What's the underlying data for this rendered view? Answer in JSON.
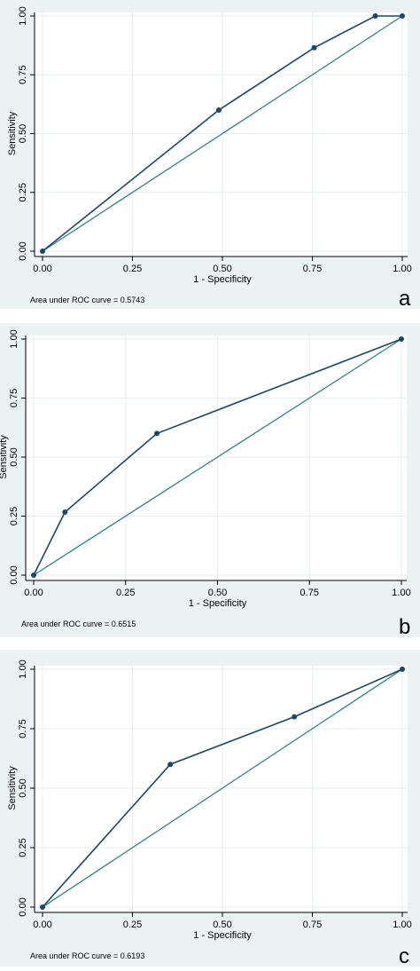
{
  "chart_data": [
    {
      "type": "line",
      "panel_label": "a",
      "xlabel": "1 - Specificity",
      "ylabel": "Sensitivity",
      "xlim": [
        0,
        1
      ],
      "ylim": [
        0,
        1
      ],
      "xticks": [
        "0.00",
        "0.25",
        "0.50",
        "0.75",
        "1.00"
      ],
      "yticks": [
        "0.00",
        "0.25",
        "0.50",
        "0.75",
        "1.00"
      ],
      "grid": true,
      "annotation": "Area under ROC curve = 0.5743",
      "series": [
        {
          "x": [
            0,
            0.49,
            0.755,
            0.925,
            1.0
          ],
          "y": [
            0,
            0.6,
            0.865,
            1.0,
            1.0
          ]
        },
        {
          "x": [
            0,
            1
          ],
          "y": [
            0,
            1
          ]
        }
      ]
    },
    {
      "type": "line",
      "panel_label": "b",
      "xlabel": "1 - Specificity",
      "ylabel": "Sensitivity",
      "xlim": [
        0,
        1
      ],
      "ylim": [
        0,
        1
      ],
      "xticks": [
        "0.00",
        "0.25",
        "0.50",
        "0.75",
        "1.00"
      ],
      "yticks": [
        "0.00",
        "0.25",
        "0.50",
        "0.75",
        "1.00"
      ],
      "grid": true,
      "annotation": "Area under ROC curve = 0.6515",
      "series": [
        {
          "x": [
            0,
            0.085,
            0.335,
            1.0
          ],
          "y": [
            0,
            0.267,
            0.6,
            1.0
          ]
        },
        {
          "x": [
            0,
            1
          ],
          "y": [
            0,
            1
          ]
        }
      ]
    },
    {
      "type": "line",
      "panel_label": "c",
      "xlabel": "1 - Specificity",
      "ylabel": "Sensitivity",
      "xlim": [
        0,
        1
      ],
      "ylim": [
        0,
        1
      ],
      "xticks": [
        "0.00",
        "0.25",
        "0.50",
        "0.75",
        "1.00"
      ],
      "yticks": [
        "0.00",
        "0.25",
        "0.50",
        "0.75",
        "1.00"
      ],
      "grid": true,
      "annotation": "Area under ROC curve = 0.6193",
      "series": [
        {
          "x": [
            0,
            0.355,
            0.7,
            1.0
          ],
          "y": [
            0,
            0.6,
            0.8,
            1.0
          ]
        },
        {
          "x": [
            0,
            1
          ],
          "y": [
            0,
            1
          ]
        }
      ]
    }
  ],
  "colors": {
    "panel_bg": "#eaf2f3",
    "plot_bg": "#ffffff",
    "roc_line": "#1a476f",
    "reference_line": "#2e8585",
    "grid": "#e6eeee",
    "text": "#000000"
  }
}
